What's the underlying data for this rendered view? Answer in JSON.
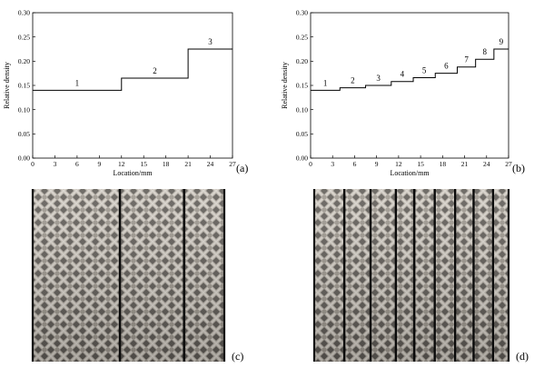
{
  "chart_data": [
    {
      "type": "line",
      "step": true,
      "panel_label": "(a)",
      "xlabel": "Location/mm",
      "ylabel": "Relative density",
      "xlim": [
        0,
        27
      ],
      "ylim": [
        0,
        0.3
      ],
      "xticks": [
        "0",
        "3",
        "6",
        "9",
        "12",
        "15",
        "18",
        "21",
        "24",
        "27"
      ],
      "yticks": [
        "0.00",
        "0.05",
        "0.10",
        "0.15",
        "0.20",
        "0.25",
        "0.30"
      ],
      "segments": [
        {
          "label": "1",
          "x": [
            0,
            12
          ],
          "y": 0.14
        },
        {
          "label": "2",
          "x": [
            12,
            21
          ],
          "y": 0.165
        },
        {
          "label": "3",
          "x": [
            21,
            27
          ],
          "y": 0.225
        }
      ]
    },
    {
      "type": "line",
      "step": true,
      "panel_label": "(b)",
      "xlabel": "Location/mm",
      "ylabel": "Relative density",
      "xlim": [
        0,
        27
      ],
      "ylim": [
        0,
        0.3
      ],
      "xticks": [
        "0",
        "3",
        "6",
        "9",
        "12",
        "15",
        "18",
        "21",
        "24",
        "27"
      ],
      "yticks": [
        "0.00",
        "0.05",
        "0.10",
        "0.15",
        "0.20",
        "0.25",
        "0.30"
      ],
      "segments": [
        {
          "label": "1",
          "x": [
            0,
            4
          ],
          "y": 0.14
        },
        {
          "label": "2",
          "x": [
            4,
            7.5
          ],
          "y": 0.145
        },
        {
          "label": "3",
          "x": [
            7.5,
            11
          ],
          "y": 0.15
        },
        {
          "label": "4",
          "x": [
            11,
            14
          ],
          "y": 0.158
        },
        {
          "label": "5",
          "x": [
            14,
            17
          ],
          "y": 0.166
        },
        {
          "label": "6",
          "x": [
            17,
            20
          ],
          "y": 0.175
        },
        {
          "label": "7",
          "x": [
            20,
            22.5
          ],
          "y": 0.188
        },
        {
          "label": "8",
          "x": [
            22.5,
            25
          ],
          "y": 0.204
        },
        {
          "label": "9",
          "x": [
            25,
            27
          ],
          "y": 0.225
        }
      ]
    }
  ],
  "photos": [
    {
      "panel_label": "(c)",
      "divider_fractions": [
        0.455,
        0.79
      ]
    },
    {
      "panel_label": "(d)",
      "divider_fractions": [
        0.155,
        0.29,
        0.42,
        0.515,
        0.62,
        0.725,
        0.82,
        0.92
      ]
    }
  ]
}
